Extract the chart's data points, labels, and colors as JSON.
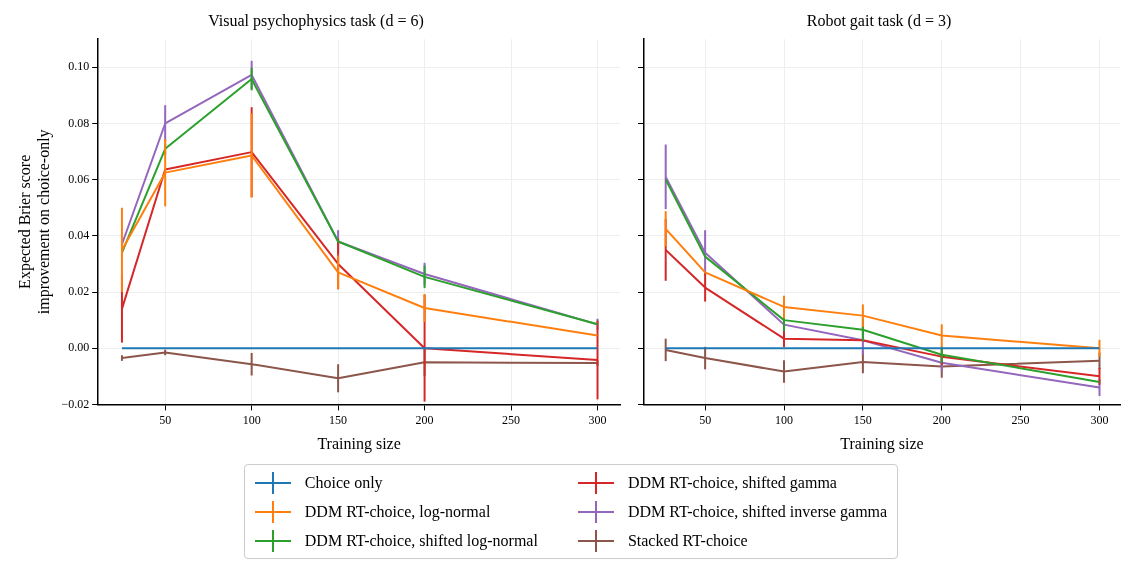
{
  "chart_data": [
    {
      "type": "line",
      "title": "Visual psychophysics task (d = 6)",
      "xlabel": "Training size",
      "ylabel": "Expected Brier score\nimprovement on choice-only",
      "x": [
        25,
        50,
        100,
        150,
        200,
        300
      ],
      "xlim": [
        11.25,
        313
      ],
      "xticks": [
        50,
        100,
        150,
        200,
        250,
        300
      ],
      "ylim": [
        -0.02,
        0.11
      ],
      "yticks": [
        {
          "value": -0.02,
          "label": "−0.02"
        },
        {
          "value": 0,
          "label": "0.00"
        },
        {
          "value": 0.02,
          "label": "0.02"
        },
        {
          "value": 0.04,
          "label": "0.04"
        },
        {
          "value": 0.06,
          "label": "0.06"
        },
        {
          "value": 0.08,
          "label": "0.08"
        },
        {
          "value": 0.1,
          "label": "0.10"
        }
      ],
      "grid": true,
      "legend": "bottom",
      "marker": "none",
      "line_style": "solid",
      "series": [
        {
          "name": "Choice only",
          "color": "#1f77b4",
          "values": [
            0,
            0,
            0,
            0,
            0,
            0
          ]
        },
        {
          "name": "DDM RT-choice, log-normal",
          "color": "#ff7f0e",
          "values": [
            0.035,
            0.0625,
            0.0686,
            0.027,
            0.0143,
            0.0045
          ],
          "errors": [
            0.015,
            0.012,
            0.015,
            0.006,
            0.005,
            null
          ]
        },
        {
          "name": "DDM RT-choice, shifted log-normal",
          "color": "#2ca02c",
          "values": [
            0.034,
            0.071,
            0.0958,
            0.038,
            0.0254,
            0.0085
          ],
          "errors": [
            null,
            0.002,
            0.004,
            null,
            0.004,
            null
          ]
        },
        {
          "name": "DDM RT-choice, shifted gamma",
          "color": "#d62728",
          "values": [
            0.014,
            0.0636,
            0.0698,
            0.03,
            0,
            -0.0042
          ],
          "errors": [
            0.012,
            null,
            0.016,
            0.009,
            0.019,
            0.014
          ]
        },
        {
          "name": "DDM RT-choice, shifted inverse gamma",
          "color": "#9467bd",
          "values": [
            0.037,
            0.08,
            0.0973,
            0.038,
            0.0264,
            0.0085
          ],
          "errors": [
            null,
            0.0065,
            0.005,
            0.004,
            0.004,
            0.002
          ]
        },
        {
          "name": "Stacked RT-choice",
          "color": "#8c564b",
          "values": [
            -0.0035,
            -0.0015,
            -0.0057,
            -0.0107,
            -0.005,
            -0.0053
          ],
          "errors": [
            0.001,
            0.001,
            0.004,
            0.005,
            0.005,
            0.001
          ]
        }
      ]
    },
    {
      "type": "line",
      "title": "Robot gait task (d = 3)",
      "xlabel": "Training size",
      "x": [
        25,
        50,
        100,
        150,
        200,
        300
      ],
      "xlim": [
        11.25,
        313
      ],
      "xticks": [
        50,
        100,
        150,
        200,
        250,
        300
      ],
      "ylim": [
        -0.02,
        0.11
      ],
      "yticks": [
        {
          "value": -0.02,
          "label": null
        },
        {
          "value": 0,
          "label": null
        },
        {
          "value": 0.02,
          "label": null
        },
        {
          "value": 0.04,
          "label": null
        },
        {
          "value": 0.06,
          "label": null
        },
        {
          "value": 0.08,
          "label": null
        },
        {
          "value": 0.1,
          "label": null
        }
      ],
      "tick_labels": "x",
      "grid": true,
      "marker": "none",
      "line_style": "solid",
      "series": [
        {
          "color": "#1f77b4",
          "values": [
            0,
            0,
            0,
            0,
            0,
            0
          ]
        },
        {
          "color": "#ff7f0e",
          "values": [
            0.0425,
            0.027,
            0.0147,
            0.0116,
            0.0045,
            0
          ],
          "errors": [
            0.0063,
            null,
            0.004,
            0.004,
            0.004,
            0.003
          ]
        },
        {
          "color": "#2ca02c",
          "values": [
            0.06,
            0.0326,
            0.01,
            0.0066,
            -0.0023,
            -0.012
          ],
          "errors": [
            null,
            null,
            0.004,
            0.004,
            0.003,
            null
          ]
        },
        {
          "color": "#d62728",
          "values": [
            0.035,
            0.0216,
            0.0034,
            0.0028,
            -0.003,
            -0.01
          ],
          "errors": [
            0.011,
            0.005,
            0.003,
            null,
            0.003,
            0.003
          ]
        },
        {
          "color": "#9467bd",
          "values": [
            0.061,
            0.034,
            0.0084,
            0.0028,
            -0.0052,
            -0.014
          ],
          "errors": [
            0.0115,
            0.008,
            null,
            0.005,
            0.003,
            0.003
          ]
        },
        {
          "color": "#8c564b",
          "values": [
            -0.0006,
            -0.0035,
            -0.0083,
            -0.0049,
            -0.0065,
            -0.0045
          ],
          "errors": [
            0.004,
            0.004,
            0.004,
            0.004,
            0.004,
            0.003
          ]
        }
      ]
    }
  ]
}
